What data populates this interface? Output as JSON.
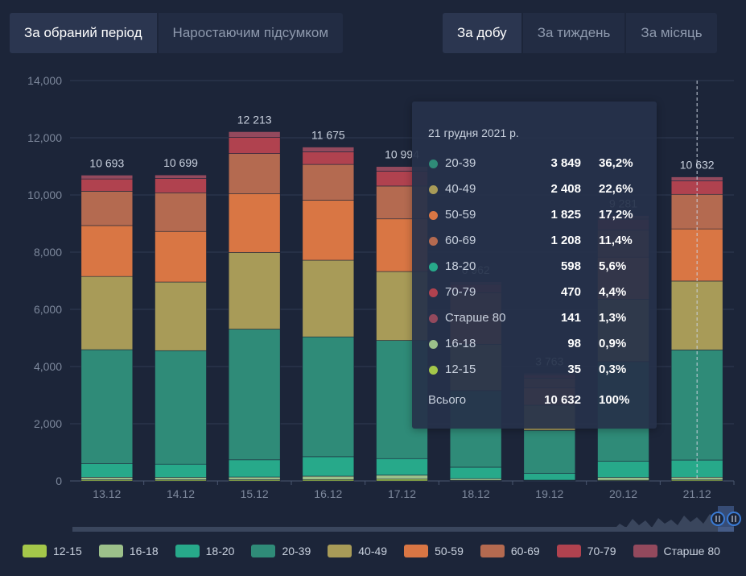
{
  "period_tabs": [
    {
      "label": "За обраний період",
      "active": true
    },
    {
      "label": "Наростаючим підсумком",
      "active": false
    }
  ],
  "interval_tabs": [
    {
      "label": "За добу",
      "active": true
    },
    {
      "label": "За тиждень",
      "active": false
    },
    {
      "label": "За місяць",
      "active": false
    }
  ],
  "chart_data": {
    "type": "bar",
    "stacked": true,
    "categories": [
      "13.12",
      "14.12",
      "15.12",
      "16.12",
      "17.12",
      "18.12",
      "19.12",
      "20.12",
      "21.12"
    ],
    "totals": [
      "10 693",
      "10 699",
      "12 213",
      "11 675",
      "10 994",
      "6 962",
      "3 763",
      "9 281",
      "10 632"
    ],
    "ylim": [
      0,
      14000
    ],
    "yticks": [
      "0",
      "2,000",
      "4,000",
      "6,000",
      "8,000",
      "10,000",
      "12,000",
      "14,000"
    ],
    "grid": true,
    "legend_position": "bottom",
    "series": [
      {
        "name": "12-15",
        "color": "#a4c74a",
        "values": [
          38,
          36,
          40,
          48,
          62,
          20,
          8,
          25,
          35
        ]
      },
      {
        "name": "16-18",
        "color": "#9cc08a",
        "values": [
          92,
          90,
          98,
          120,
          140,
          60,
          20,
          100,
          98
        ]
      },
      {
        "name": "18-20",
        "color": "#27a98a",
        "values": [
          470,
          460,
          600,
          680,
          580,
          400,
          240,
          560,
          598
        ]
      },
      {
        "name": "20-39",
        "color": "#2f8b78",
        "values": [
          3990,
          3970,
          4570,
          4190,
          4130,
          2680,
          1500,
          3490,
          3849
        ]
      },
      {
        "name": "40-49",
        "color": "#a89b58",
        "values": [
          2560,
          2400,
          2680,
          2680,
          2410,
          1620,
          880,
          2180,
          2408
        ]
      },
      {
        "name": "50-59",
        "color": "#d97644",
        "values": [
          1780,
          1770,
          2060,
          2100,
          1840,
          1100,
          600,
          1470,
          1825
        ]
      },
      {
        "name": "60-69",
        "color": "#b46a50",
        "values": [
          1200,
          1350,
          1400,
          1250,
          1150,
          700,
          350,
          950,
          1208
        ]
      },
      {
        "name": "70-79",
        "color": "#b0424f",
        "values": [
          430,
          500,
          570,
          440,
          520,
          300,
          120,
          380,
          470
        ]
      },
      {
        "name": "Старше 80",
        "color": "#93495d",
        "values": [
          133,
          123,
          195,
          167,
          162,
          82,
          45,
          126,
          141
        ]
      }
    ]
  },
  "tooltip": {
    "title": "21 грудня 2021 р.",
    "rows": [
      {
        "label": "20-39",
        "value": "3 849",
        "pct": "36,2%",
        "color": "#2f8b78"
      },
      {
        "label": "40-49",
        "value": "2 408",
        "pct": "22,6%",
        "color": "#a89b58"
      },
      {
        "label": "50-59",
        "value": "1 825",
        "pct": "17,2%",
        "color": "#d97644"
      },
      {
        "label": "60-69",
        "value": "1 208",
        "pct": "11,4%",
        "color": "#b46a50"
      },
      {
        "label": "18-20",
        "value": "598",
        "pct": "5,6%",
        "color": "#27a98a"
      },
      {
        "label": "70-79",
        "value": "470",
        "pct": "4,4%",
        "color": "#b0424f"
      },
      {
        "label": "Старше 80",
        "value": "141",
        "pct": "1,3%",
        "color": "#93495d"
      },
      {
        "label": "16-18",
        "value": "98",
        "pct": "0,9%",
        "color": "#9cc08a"
      },
      {
        "label": "12-15",
        "value": "35",
        "pct": "0,3%",
        "color": "#a4c74a"
      }
    ],
    "total": {
      "label": "Всього",
      "value": "10 632",
      "pct": "100%"
    }
  },
  "legend": [
    {
      "label": "12-15",
      "color": "#a4c74a"
    },
    {
      "label": "16-18",
      "color": "#9cc08a"
    },
    {
      "label": "18-20",
      "color": "#27a98a"
    },
    {
      "label": "20-39",
      "color": "#2f8b78"
    },
    {
      "label": "40-49",
      "color": "#a89b58"
    },
    {
      "label": "50-59",
      "color": "#d97644"
    },
    {
      "label": "60-69",
      "color": "#b46a50"
    },
    {
      "label": "70-79",
      "color": "#b0424f"
    },
    {
      "label": "Старше 80",
      "color": "#93495d"
    }
  ]
}
